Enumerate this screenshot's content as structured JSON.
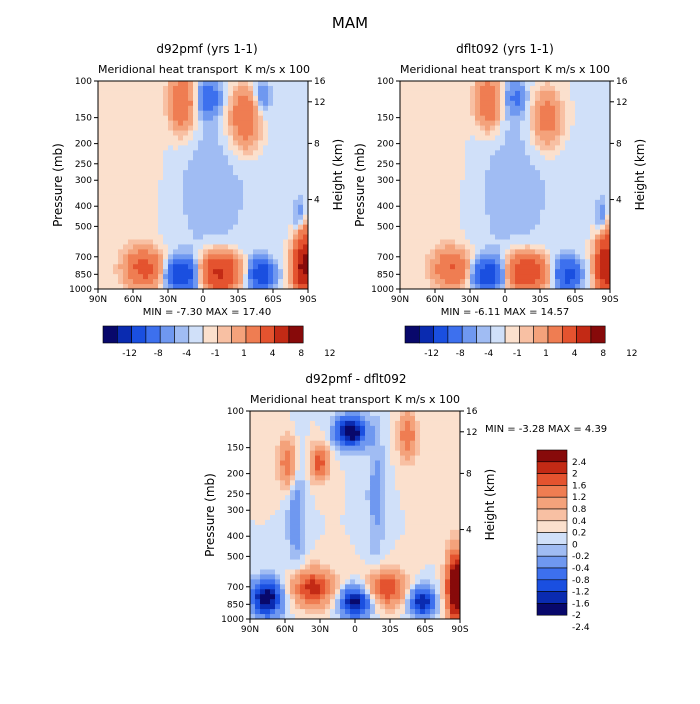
{
  "figure_title": "MAM",
  "axis_labels": {
    "pressure": "Pressure (mb)",
    "height": "Height (km)"
  },
  "ticks": {
    "pressure": [
      "100",
      "150",
      "200",
      "250",
      "300",
      "400",
      "500",
      "700",
      "850",
      "1000"
    ],
    "height": [
      "16",
      "12",
      "8",
      "4"
    ],
    "latitude": [
      "90N",
      "60N",
      "30N",
      "0",
      "30S",
      "60S",
      "90S"
    ]
  },
  "panels": [
    {
      "id": "panel-1",
      "title": "d92pmf (yrs 1-1)",
      "subtitle": "Meridional heat transport",
      "units": "K m/s x 100",
      "min_max": "MIN =  -7.30   MAX =  17.40",
      "colorbar_labels": [
        "-12",
        "-8",
        "-4",
        "-1",
        "1",
        "4",
        "8",
        "12"
      ]
    },
    {
      "id": "panel-2",
      "title": "dflt092 (yrs 1-1)",
      "subtitle": "Meridional heat transport",
      "units": "K m/s x 100",
      "min_max": "MIN =  -6.11   MAX =  14.57",
      "colorbar_labels": [
        "-12",
        "-8",
        "-4",
        "-1",
        "1",
        "4",
        "8",
        "12"
      ]
    },
    {
      "id": "panel-3",
      "title": "d92pmf - dflt092",
      "subtitle": "Meridional heat transport",
      "units": "K m/s x 100",
      "min_max": "MIN =  -3.28   MAX =   4.39",
      "colorbar_labels": [
        "2.4",
        "2",
        "1.6",
        "1.2",
        "0.8",
        "0.4",
        "0.2",
        "0",
        "-0.2",
        "-0.4",
        "-0.8",
        "-1.2",
        "-1.6",
        "-2",
        "-2.4"
      ]
    }
  ],
  "colors": {
    "palette": [
      "#08086b",
      "#0a2bb0",
      "#1a4fe0",
      "#3d70ee",
      "#6f98f0",
      "#a0bcf3",
      "#d0e0f9",
      "#fbe0cd",
      "#f8c0a3",
      "#f4a27b",
      "#ef7d52",
      "#e4532f",
      "#c32a15",
      "#870a0a"
    ],
    "light_blue": "#d0e0f9",
    "light_red": "#fbe0cd"
  },
  "chart_data": [
    {
      "type": "heatmap",
      "x": [
        "90N",
        "60N",
        "30N",
        "0",
        "30S",
        "60S",
        "90S"
      ],
      "y": [
        "100",
        "150",
        "200",
        "250",
        "300",
        "400",
        "500",
        "700",
        "850",
        "1000"
      ],
      "levels": [
        -12,
        -8,
        -4,
        -1,
        1,
        4,
        8,
        12
      ]
    },
    {
      "type": "heatmap",
      "x": [
        "90N",
        "60N",
        "30N",
        "0",
        "30S",
        "60S",
        "90S"
      ],
      "y": [
        "100",
        "150",
        "200",
        "250",
        "300",
        "400",
        "500",
        "700",
        "850",
        "1000"
      ],
      "levels": [
        -12,
        -8,
        -4,
        -1,
        1,
        4,
        8,
        12
      ]
    },
    {
      "type": "heatmap",
      "x": [
        "90N",
        "60N",
        "30N",
        "0",
        "30S",
        "60S",
        "90S"
      ],
      "y": [
        "100",
        "150",
        "200",
        "250",
        "300",
        "400",
        "500",
        "700",
        "850",
        "1000"
      ],
      "levels": [
        -2.4,
        -2,
        -1.6,
        -1.2,
        -0.8,
        -0.4,
        -0.2,
        0,
        0.2,
        0.4,
        0.8,
        1.2,
        1.6,
        2,
        2.4
      ]
    }
  ]
}
